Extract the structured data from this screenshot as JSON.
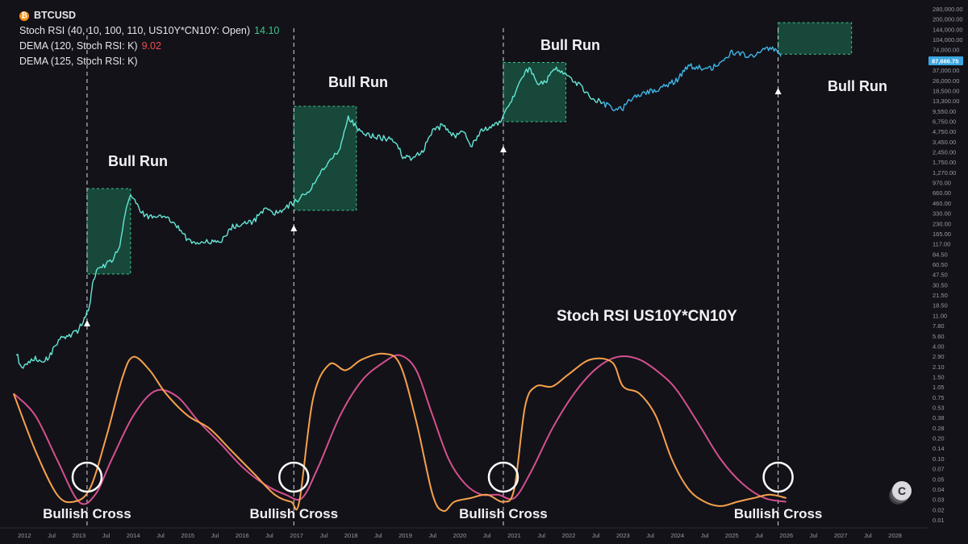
{
  "legend": {
    "symbol": "BTCUSD",
    "line1_label": "Stoch RSI (40, 10, 100, 110, US10Y*CN10Y: Open)",
    "line1_value": "14.10",
    "line2_label": "DEMA (120, Stoch RSI: K)",
    "line2_value": "9.02",
    "line3_label": "DEMA (125, Stoch RSI: K)"
  },
  "colors": {
    "background": "#131219",
    "price_line": "#64e6d4",
    "price_line_late": "#3fb5e6",
    "bull_box_fill": "#1a5b46",
    "bull_box_border": "#3ec48a",
    "stoch_k": "#f5a14c",
    "dema": "#d4508f",
    "value_green": "#3ec48a",
    "value_red": "#e8504e",
    "price_tag": "#3aa6e0"
  },
  "chart_data": {
    "type": "line",
    "title": "",
    "subtitle": "Stoch RSI US10Y*CN10Y",
    "price_scale": "log",
    "current_price_label": "87,666.75",
    "x_ticks": [
      "2012",
      "Jul",
      "2013",
      "Jul",
      "2014",
      "Jul",
      "2015",
      "Jul",
      "2016",
      "Jul",
      "2017",
      "Jul",
      "2018",
      "Jul",
      "2019",
      "Jul",
      "2020",
      "Jul",
      "2021",
      "Jul",
      "2022",
      "Jul",
      "2023",
      "Jul",
      "2024",
      "Jul",
      "2025",
      "Jul",
      "2026",
      "Jul",
      "2027",
      "Jul",
      "2028"
    ],
    "y_ticks": [
      "280,000.00",
      "200,000.00",
      "144,000.00",
      "104,000.00",
      "74,000.00",
      "52,000.00",
      "37,000.00",
      "26,000.00",
      "18,500.00",
      "13,300.00",
      "9,550.00",
      "6,750.00",
      "4,750.00",
      "3,450.00",
      "2,450.00",
      "1,750.00",
      "1,270.00",
      "970.00",
      "660.00",
      "460.00",
      "330.00",
      "230.00",
      "165.00",
      "117.00",
      "84.50",
      "60.50",
      "47.50",
      "30.50",
      "21.50",
      "18.50",
      "11.00",
      "7.80",
      "5.60",
      "4.00",
      "2.90",
      "2.10",
      "1.50",
      "1.05",
      "0.75",
      "0.53",
      "0.38",
      "0.28",
      "0.20",
      "0.14",
      "0.10",
      "0.07",
      "0.05",
      "0.04",
      "0.03",
      "0.02",
      "0.01"
    ],
    "series": [
      {
        "name": "BTCUSD",
        "x": [
          2011.85,
          2011.95,
          2012.05,
          2012.2,
          2012.35,
          2012.5,
          2012.65,
          2012.8,
          2012.95,
          2013.1,
          2013.2,
          2013.25,
          2013.32,
          2013.45,
          2013.6,
          2013.75,
          2013.85,
          2013.95,
          2014.05,
          2014.2,
          2014.4,
          2014.6,
          2014.8,
          2015.0,
          2015.2,
          2015.4,
          2015.6,
          2015.8,
          2016.0,
          2016.2,
          2016.4,
          2016.6,
          2016.8,
          2017.0,
          2017.2,
          2017.4,
          2017.6,
          2017.8,
          2017.95,
          2018.05,
          2018.2,
          2018.4,
          2018.6,
          2018.8,
          2018.95,
          2019.1,
          2019.3,
          2019.5,
          2019.7,
          2019.9,
          2020.1,
          2020.2,
          2020.4,
          2020.6,
          2020.75,
          2020.9,
          2021.05,
          2021.2,
          2021.3,
          2021.45,
          2021.6,
          2021.75,
          2021.85,
          2022.0,
          2022.2,
          2022.4,
          2022.6,
          2022.8,
          2023.0,
          2023.2,
          2023.4,
          2023.6,
          2023.8,
          2024.0,
          2024.2,
          2024.4,
          2024.6,
          2024.8,
          2025.0,
          2025.2,
          2025.4,
          2025.6,
          2025.75,
          2025.9
        ],
        "y": [
          7,
          4,
          5,
          6,
          5,
          7,
          11,
          12,
          13,
          20,
          30,
          60,
          90,
          110,
          130,
          200,
          600,
          1000,
          800,
          550,
          500,
          550,
          400,
          250,
          230,
          240,
          230,
          380,
          420,
          450,
          650,
          600,
          700,
          900,
          1100,
          2000,
          3000,
          4500,
          13000,
          10000,
          8000,
          7000,
          6500,
          6000,
          3700,
          3500,
          4000,
          8000,
          10000,
          7000,
          8000,
          5000,
          8500,
          9500,
          11000,
          18000,
          32000,
          55000,
          58000,
          36000,
          42000,
          60000,
          55000,
          45000,
          35000,
          25000,
          20000,
          17000,
          17000,
          25000,
          28000,
          30000,
          35000,
          42000,
          65000,
          62000,
          60000,
          70000,
          100000,
          95000,
          85000,
          110000,
          115000,
          87666
        ]
      },
      {
        "name": "Stoch RSI (40, 10, 100, 110, US10Y*CN10Y: Open)",
        "x": [
          2011.8,
          2012.2,
          2012.6,
          2012.9,
          2013.2,
          2013.5,
          2013.8,
          2014.0,
          2014.3,
          2014.6,
          2015.0,
          2015.4,
          2015.8,
          2016.2,
          2016.6,
          2016.9,
          2017.05,
          2017.3,
          2017.6,
          2017.9,
          2018.2,
          2018.6,
          2018.9,
          2019.2,
          2019.5,
          2019.7,
          2019.9,
          2020.2,
          2020.5,
          2020.8,
          2021.0,
          2021.2,
          2021.4,
          2021.7,
          2022.0,
          2022.4,
          2022.8,
          2023.0,
          2023.3,
          2023.6,
          2023.9,
          2024.2,
          2024.5,
          2024.8,
          2025.1,
          2025.4,
          2025.7,
          2026.0
        ],
        "y": [
          1.2,
          0.2,
          0.05,
          0.04,
          0.06,
          0.3,
          2.0,
          3.8,
          2.5,
          1.2,
          0.6,
          0.4,
          0.2,
          0.1,
          0.05,
          0.04,
          0.04,
          1.0,
          3.0,
          2.5,
          3.5,
          4.2,
          3.0,
          0.5,
          0.05,
          0.03,
          0.04,
          0.045,
          0.05,
          0.04,
          0.06,
          0.8,
          1.5,
          1.5,
          2.2,
          3.5,
          3.2,
          1.5,
          1.2,
          0.6,
          0.15,
          0.06,
          0.04,
          0.035,
          0.04,
          0.045,
          0.05,
          0.045
        ]
      },
      {
        "name": "DEMA (120, Stoch RSI: K)",
        "x": [
          2011.8,
          2012.2,
          2012.6,
          2013.0,
          2013.3,
          2013.6,
          2014.0,
          2014.4,
          2014.8,
          2015.2,
          2015.6,
          2016.0,
          2016.4,
          2016.8,
          2017.1,
          2017.4,
          2017.8,
          2018.2,
          2018.6,
          2018.9,
          2019.2,
          2019.5,
          2019.8,
          2020.1,
          2020.4,
          2020.7,
          2021.0,
          2021.3,
          2021.7,
          2022.1,
          2022.5,
          2022.9,
          2023.3,
          2023.7,
          2024.0,
          2024.4,
          2024.8,
          2025.2,
          2025.6,
          2026.0
        ],
        "y": [
          1.2,
          0.6,
          0.15,
          0.04,
          0.05,
          0.15,
          0.6,
          1.3,
          1.1,
          0.5,
          0.25,
          0.12,
          0.07,
          0.05,
          0.045,
          0.12,
          0.6,
          1.8,
          3.2,
          4.0,
          2.5,
          0.6,
          0.15,
          0.07,
          0.05,
          0.05,
          0.045,
          0.1,
          0.4,
          1.2,
          2.6,
          3.8,
          3.5,
          2.2,
          1.3,
          0.45,
          0.15,
          0.07,
          0.045,
          0.04
        ]
      }
    ],
    "annotations": {
      "bull_run": [
        "Bull Run",
        "Bull Run",
        "Bull Run",
        "Bull Run"
      ],
      "bullish_cross": [
        "Bullish Cross",
        "Bullish Cross",
        "Bullish Cross",
        "Bullish Cross"
      ],
      "cross_years": [
        2013.15,
        2016.95,
        2020.8,
        2025.85
      ],
      "bull_run_ranges": [
        [
          2013.15,
          2013.95,
          85,
          1300
        ],
        [
          2016.95,
          2018.1,
          650,
          18000
        ],
        [
          2020.8,
          2021.95,
          11000,
          73000
        ],
        [
          2025.85,
          2027.2,
          95000,
          260000
        ]
      ]
    },
    "grid": false,
    "legend_position": "top-left"
  }
}
